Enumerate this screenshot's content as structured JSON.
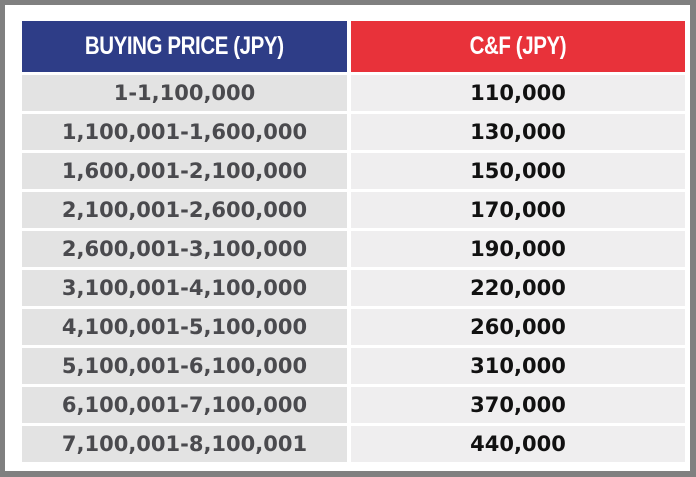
{
  "table": {
    "headers": {
      "buying_price": "BUYING PRICE (JPY)",
      "cf": "C&F (JPY)"
    },
    "colors": {
      "header_left_bg": "#2e3d87",
      "header_right_bg": "#e8323a",
      "frame": "#808080",
      "row_left_bg": "#e3e3e3",
      "row_right_bg": "#efeeef"
    },
    "rows": [
      {
        "buying_price": "1-1,100,000",
        "cf": "110,000"
      },
      {
        "buying_price": "1,100,001-1,600,000",
        "cf": "130,000"
      },
      {
        "buying_price": "1,600,001-2,100,000",
        "cf": "150,000"
      },
      {
        "buying_price": "2,100,001-2,600,000",
        "cf": "170,000"
      },
      {
        "buying_price": "2,600,001-3,100,000",
        "cf": "190,000"
      },
      {
        "buying_price": "3,100,001-4,100,000",
        "cf": "220,000"
      },
      {
        "buying_price": "4,100,001-5,100,000",
        "cf": "260,000"
      },
      {
        "buying_price": "5,100,001-6,100,000",
        "cf": "310,000"
      },
      {
        "buying_price": "6,100,001-7,100,000",
        "cf": "370,000"
      },
      {
        "buying_price": "7,100,001-8,100,001",
        "cf": "440,000"
      }
    ]
  }
}
